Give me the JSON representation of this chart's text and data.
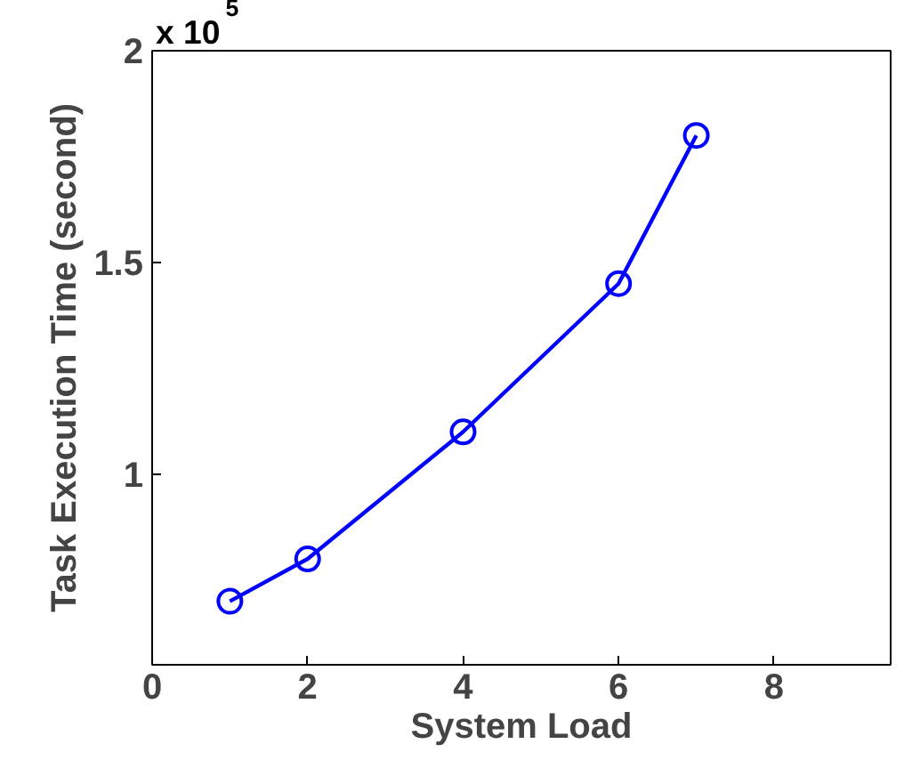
{
  "chart_data": {
    "type": "line",
    "xlabel": "System Load",
    "ylabel": "Task Execution Time (second)",
    "x": [
      1,
      2,
      4,
      6,
      7
    ],
    "series": [
      {
        "color": "#0000ff",
        "values": [
          0.7,
          0.8,
          1.1,
          1.45,
          1.8
        ]
      }
    ],
    "xlim": [
      0,
      9.5
    ],
    "xticks": [
      0,
      2,
      4,
      6,
      8
    ],
    "ylim": [
      0.55,
      2
    ],
    "yticks": [
      1,
      1.5,
      2
    ],
    "annotations": [
      "x 10$^{5}$"
    ],
    "marker": "circle",
    "line_style": "solid",
    "grid": false
  }
}
